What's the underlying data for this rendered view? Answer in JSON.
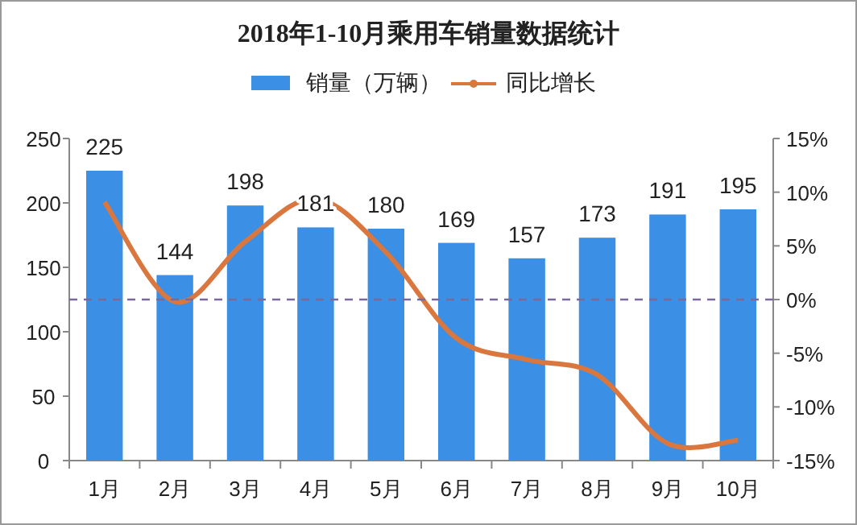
{
  "chart_data": {
    "type": "bar",
    "title": "2018年1-10月乘用车销量数据统计",
    "categories": [
      "1月",
      "2月",
      "3月",
      "4月",
      "5月",
      "6月",
      "7月",
      "8月",
      "9月",
      "10月"
    ],
    "series": [
      {
        "name": "销量（万辆）",
        "color": "#3b8fe4",
        "values": [
          225,
          144,
          198,
          181,
          180,
          169,
          157,
          173,
          191,
          195
        ],
        "data_labels": true
      },
      {
        "name": "同比增长",
        "type": "line",
        "axis": "y2",
        "color": "#d9773e",
        "values": [
          9.1,
          -0.2,
          5.4,
          9.4,
          4.4,
          -3.6,
          -5.6,
          -7.0,
          -13.4,
          -13.1
        ]
      }
    ],
    "ylim": [
      0,
      250
    ],
    "yticks": [
      0,
      50,
      100,
      150,
      200,
      250
    ],
    "y2lim": [
      -15,
      15
    ],
    "y2ticks": [
      {
        "value": -15,
        "label": "-15%"
      },
      {
        "value": -10,
        "label": "-10%"
      },
      {
        "value": -5,
        "label": "-5%"
      },
      {
        "value": 0,
        "label": "0%"
      },
      {
        "value": 5,
        "label": "5%"
      },
      {
        "value": 10,
        "label": "10%"
      },
      {
        "value": 15,
        "label": "15%"
      }
    ],
    "ref_lines": [
      {
        "axis": "y2",
        "value": 0,
        "color": "#7a6a9c",
        "line_style": "dashed"
      }
    ],
    "legend": "top",
    "grid": false
  }
}
